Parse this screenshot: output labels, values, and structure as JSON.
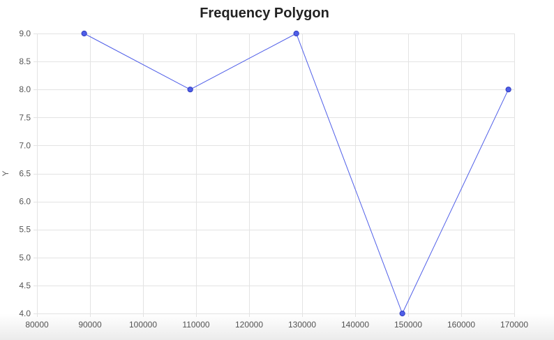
{
  "chart_data": {
    "type": "line",
    "title": "Frequency Polygon",
    "xlabel": "",
    "ylabel": "Y",
    "xlim": [
      80000,
      170000
    ],
    "ylim": [
      4.0,
      9.0
    ],
    "x_ticks": [
      80000,
      90000,
      100000,
      110000,
      120000,
      130000,
      140000,
      150000,
      160000,
      170000
    ],
    "y_ticks": [
      "4.0",
      "4.5",
      "5.0",
      "5.5",
      "6.0",
      "6.5",
      "7.0",
      "7.5",
      "8.0",
      "8.5",
      "9.0"
    ],
    "grid": true,
    "legend": "none",
    "series": [
      {
        "x": [
          88900,
          108900,
          128900,
          148900,
          168900
        ],
        "values": [
          9,
          8,
          9,
          4,
          8
        ],
        "color": "#4f5ee8"
      }
    ]
  }
}
